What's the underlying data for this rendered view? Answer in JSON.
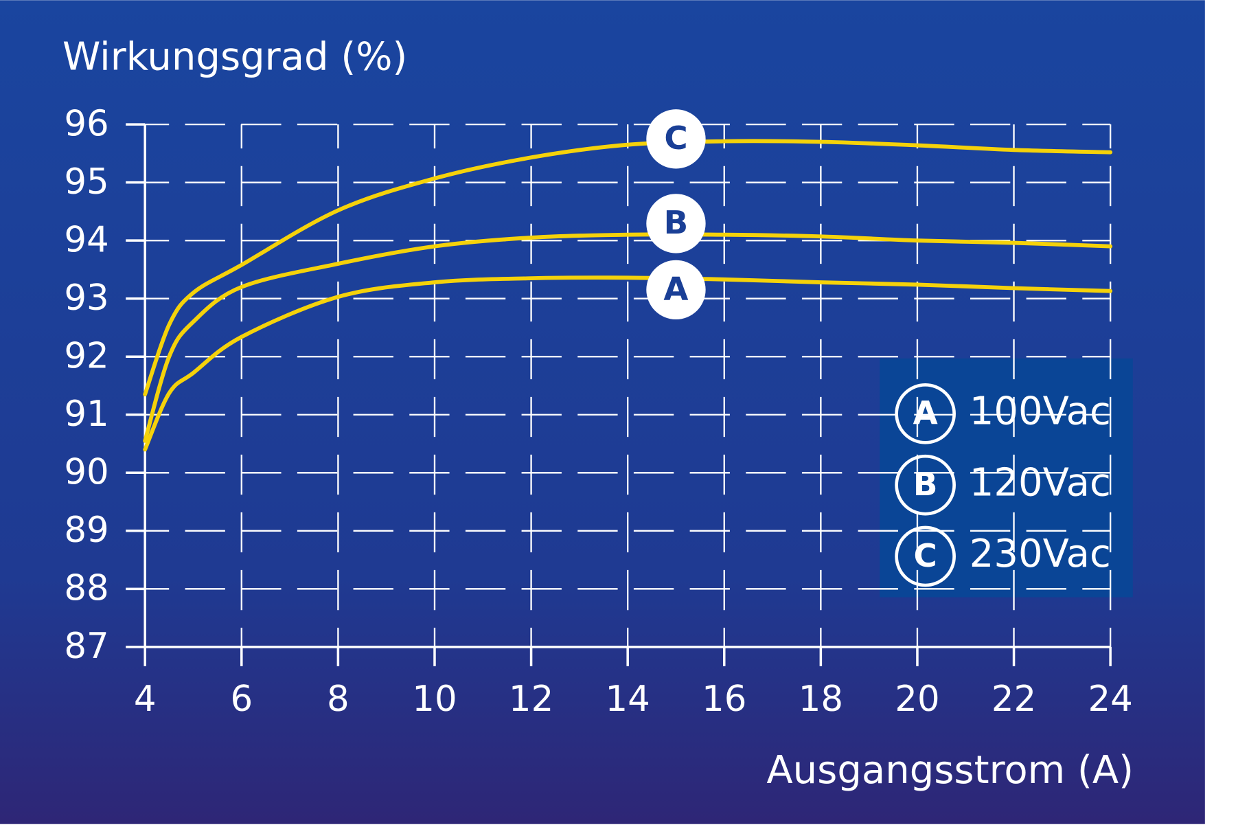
{
  "chart_data": {
    "type": "line",
    "y_label": "Wirkungsgrad (%)",
    "x_label": "Ausgangsstrom (A)",
    "x": [
      4,
      4.5,
      5,
      6,
      8,
      10,
      12,
      14,
      16,
      18,
      20,
      22,
      24
    ],
    "series": [
      {
        "name": "100Vac",
        "label": "A",
        "color": "#f5d20a",
        "values": [
          90.4,
          91.37,
          91.72,
          92.34,
          93.03,
          93.28,
          93.35,
          93.36,
          93.33,
          93.28,
          93.24,
          93.18,
          93.13
        ]
      },
      {
        "name": "120Vac",
        "label": "B",
        "color": "#f5d20a",
        "values": [
          90.55,
          92.0,
          92.6,
          93.2,
          93.6,
          93.9,
          94.05,
          94.1,
          94.1,
          94.07,
          94.0,
          93.96,
          93.9
        ]
      },
      {
        "name": "230Vac",
        "label": "C",
        "color": "#f5d20a",
        "values": [
          91.35,
          92.55,
          93.1,
          93.58,
          94.52,
          95.07,
          95.43,
          95.65,
          95.71,
          95.7,
          95.64,
          95.56,
          95.52
        ]
      }
    ],
    "xlim": [
      4,
      24
    ],
    "xticks": [
      4,
      6,
      8,
      10,
      12,
      14,
      16,
      18,
      20,
      22,
      24
    ],
    "ylim": [
      87,
      96
    ],
    "yticks": [
      87,
      88,
      89,
      90,
      91,
      92,
      93,
      94,
      95,
      96
    ],
    "grid": true,
    "legend": "lower right",
    "label_x": 15
  }
}
